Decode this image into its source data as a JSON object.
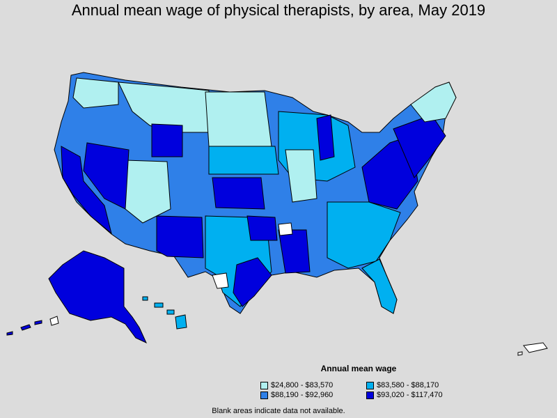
{
  "title": "Annual mean wage of physical therapists, by area, May 2019",
  "legend": {
    "title": "Annual mean wage",
    "items": [
      {
        "label": "$24,800 - $83,570",
        "color": "#b0f0f0"
      },
      {
        "label": "$83,580 - $88,170",
        "color": "#00b0f0"
      },
      {
        "label": "$88,190 - $92,960",
        "color": "#2f80e8"
      },
      {
        "label": "$93,020 - $117,470",
        "color": "#0000dd"
      }
    ]
  },
  "footnote": "Blank areas indicate data not available."
}
